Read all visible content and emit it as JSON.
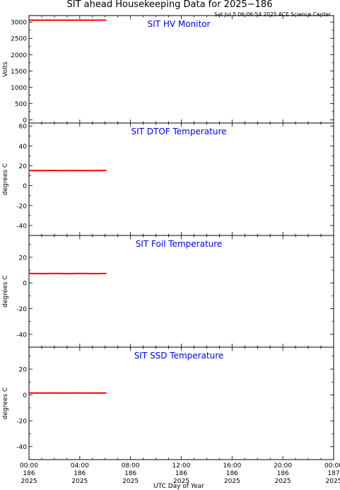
{
  "title": "SIT ahead Housekeeping Data for 2025−186",
  "timestamp": "Sat Jul  5 06:06:54 2025 ACE Science Center",
  "xlabel": "UTC Day of Year",
  "x_ticks": [
    {
      "time": "00:00",
      "doy": "186",
      "year": "2025"
    },
    {
      "time": "04:00",
      "doy": "186",
      "year": "2025"
    },
    {
      "time": "08:00",
      "doy": "186",
      "year": "2025"
    },
    {
      "time": "12:00",
      "doy": "186",
      "year": "2025"
    },
    {
      "time": "16:00",
      "doy": "186",
      "year": "2025"
    },
    {
      "time": "20:00",
      "doy": "186",
      "year": "2025"
    },
    {
      "time": "00:00",
      "doy": "187",
      "year": "2025"
    }
  ],
  "colors": {
    "data": "#ff0000",
    "panel_title": "#0000ff",
    "axes": "#000000"
  },
  "chart_data": [
    {
      "type": "line",
      "title": "SIT HV Monitor",
      "ylabel": "Volts",
      "xlim_hours": [
        0,
        24
      ],
      "ylim": [
        -100,
        3200
      ],
      "yticks": [
        0,
        500,
        1000,
        1500,
        2000,
        2500,
        3000
      ],
      "series": [
        {
          "x_hours": [
            0.0,
            1.0,
            2.0,
            3.0,
            4.0,
            5.0,
            6.1
          ],
          "values": [
            3060,
            3060,
            3060,
            3060,
            3060,
            3060,
            3060
          ]
        }
      ]
    },
    {
      "type": "line",
      "title": "SIT DTOF Temperature",
      "ylabel": "degrees C",
      "xlim_hours": [
        0,
        24
      ],
      "ylim": [
        -50,
        63
      ],
      "yticks": [
        -40,
        -20,
        0,
        20,
        40,
        60
      ],
      "series": [
        {
          "x_hours": [
            0.0,
            1.0,
            2.0,
            3.0,
            4.0,
            5.0,
            6.1
          ],
          "values": [
            15.3,
            15.2,
            15.3,
            15.2,
            15.3,
            15.2,
            15.3
          ]
        }
      ]
    },
    {
      "type": "line",
      "title": "SIT Foil Temperature",
      "ylabel": "degrees C",
      "xlim_hours": [
        0,
        24
      ],
      "ylim": [
        -50,
        37
      ],
      "yticks": [
        -40,
        -20,
        0,
        20
      ],
      "series": [
        {
          "x_hours": [
            0.0,
            1.0,
            2.0,
            3.0,
            4.0,
            5.0,
            6.1
          ],
          "values": [
            7.4,
            7.3,
            7.4,
            7.3,
            7.4,
            7.3,
            7.4
          ]
        }
      ]
    },
    {
      "type": "line",
      "title": "SIT SSD Temperature",
      "ylabel": "degrees C",
      "xlim_hours": [
        0,
        24
      ],
      "ylim": [
        -50,
        37
      ],
      "yticks": [
        -40,
        -20,
        0,
        20
      ],
      "series": [
        {
          "x_hours": [
            0.0,
            1.0,
            2.0,
            3.0,
            4.0,
            5.0,
            6.1
          ],
          "values": [
            1.6,
            1.5,
            1.6,
            1.5,
            1.6,
            1.5,
            1.6
          ]
        }
      ]
    }
  ]
}
